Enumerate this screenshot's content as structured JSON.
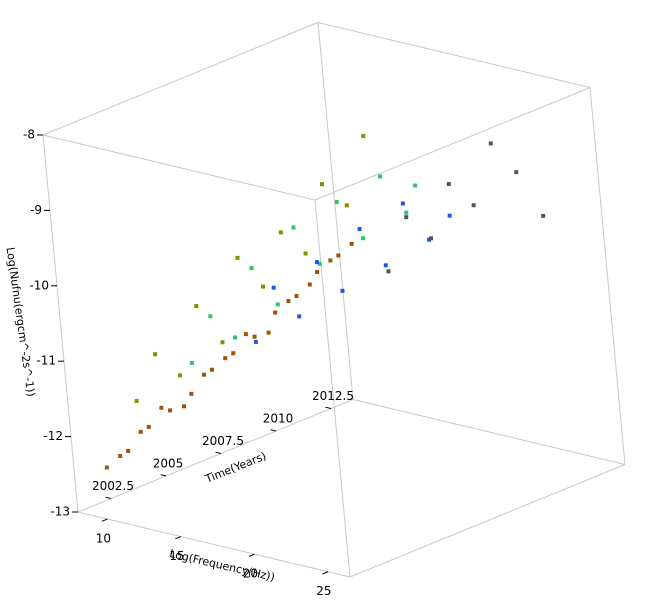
{
  "chart_data": {
    "type": "scatter3d",
    "xlabel": "Time(Years)",
    "ylabel": "Log(Frequency(Hz))",
    "zlabel": "Log(Nufnu(ergcm^-2s^-1))",
    "xlim": [
      2001,
      2013.5
    ],
    "ylim": [
      8,
      26.5
    ],
    "zlim": [
      -13,
      -8
    ],
    "xticks": [
      2002.5,
      2005,
      2007.5,
      2010,
      2012.5
    ],
    "yticks": [
      10,
      15,
      20,
      25
    ],
    "zticks": [
      -13,
      -12,
      -11,
      -10,
      -9,
      -8
    ],
    "series": [
      {
        "color": "#a0520a",
        "x": [
          2001.5,
          2002.5,
          2003.5,
          2004.5,
          2005.5,
          2006.5,
          2007.5,
          2008.5,
          2009.5,
          2010.5,
          2011.5,
          2012.5
        ],
        "y": [
          9.5,
          9.5,
          9.5,
          9.5,
          9.5,
          9.5,
          9.5,
          9.5,
          9.5,
          9.5,
          9.5,
          9.5
        ],
        "z": [
          -12.4,
          -12.3,
          -12.1,
          -12.0,
          -11.9,
          -11.7,
          -11.6,
          -11.5,
          -11.3,
          -11.2,
          -11.0,
          -10.9
        ]
      },
      {
        "color": "#a0520a",
        "x": [
          2001.5,
          2002.5,
          2003.5,
          2004.5,
          2005.5,
          2006.5,
          2007.5,
          2008.5,
          2009.5,
          2010.5,
          2011.5,
          2012.5
        ],
        "y": [
          10.5,
          10.5,
          10.5,
          10.5,
          10.5,
          10.5,
          10.5,
          10.5,
          10.5,
          10.5,
          10.5,
          10.5
        ],
        "z": [
          -12.2,
          -12.0,
          -11.8,
          -11.9,
          -11.6,
          -11.5,
          -11.3,
          -11.4,
          -11.1,
          -11.0,
          -10.8,
          -10.7
        ]
      },
      {
        "color": "#8c8a00",
        "x": [
          2001.5,
          2002.5,
          2003.5,
          2004.5,
          2005.5,
          2006.5,
          2007.5,
          2008.5,
          2009.5,
          2010.5,
          2011.5,
          2012.5
        ],
        "y": [
          12,
          12,
          12,
          12,
          12,
          12,
          12,
          12,
          12,
          12,
          12,
          12
        ],
        "z": [
          -11.4,
          -10.9,
          -11.3,
          -10.5,
          -11.1,
          -10.1,
          -10.6,
          -10.0,
          -10.4,
          -9.6,
          -10.0,
          -9.2
        ]
      },
      {
        "color": "#2ec46a",
        "x": [
          2002.5,
          2003.5,
          2004.5,
          2005.5,
          2006.5,
          2007.5,
          2008.5,
          2009.5,
          2010.5,
          2011.5,
          2012.5,
          2013
        ],
        "y": [
          14.5,
          14.5,
          14.5,
          14.5,
          14.5,
          14.5,
          14.5,
          14.5,
          14.5,
          14.5,
          14.5,
          14.5
        ],
        "z": [
          -10.9,
          -10.4,
          -10.8,
          -10.0,
          -10.6,
          -9.7,
          -10.3,
          -9.6,
          -10.2,
          -9.5,
          -10.1,
          -9.8
        ]
      },
      {
        "color": "#1a5ce0",
        "x": [
          2003.5,
          2004.5,
          2005.5,
          2006.5,
          2007.5,
          2008.5,
          2009.5,
          2010.5,
          2011.5,
          2012.5
        ],
        "y": [
          17.5,
          17.5,
          17.5,
          17.5,
          17.5,
          17.5,
          17.5,
          17.5,
          17.5,
          17.5
        ],
        "z": [
          -10.6,
          -10.0,
          -10.5,
          -9.9,
          -10.4,
          -9.7,
          -10.3,
          -9.6,
          -10.2,
          -10.0
        ]
      },
      {
        "color": "#555555",
        "x": [
          2005.5,
          2006.5,
          2007.5,
          2008.5,
          2009.5,
          2010.5,
          2011.5,
          2012.5
        ],
        "y": [
          24,
          24,
          24,
          24,
          24,
          24,
          24,
          24
        ],
        "z": [
          -9.6,
          -9.0,
          -9.4,
          -8.8,
          -9.2,
          -8.5,
          -9.0,
          -9.7
        ]
      }
    ]
  }
}
